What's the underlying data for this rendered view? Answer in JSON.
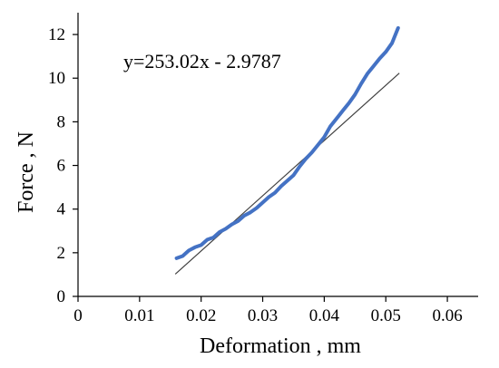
{
  "chart_data": {
    "type": "line",
    "title": "",
    "xlabel": "Deformation , mm",
    "ylabel": "Force , N",
    "xlim": [
      0,
      0.065
    ],
    "ylim": [
      0,
      13
    ],
    "x_ticks": [
      0,
      0.01,
      0.02,
      0.03,
      0.04,
      0.05,
      0.06
    ],
    "x_tick_labels": [
      "0",
      "0.01",
      "0.02",
      "0.03",
      "0.04",
      "0.05",
      "0.06"
    ],
    "y_ticks": [
      0,
      2,
      4,
      6,
      8,
      10,
      12
    ],
    "y_tick_labels": [
      "0",
      "2",
      "4",
      "6",
      "8",
      "10",
      "12"
    ],
    "grid": false,
    "legend": "none",
    "annotation": "y=253.02x - 2.9787",
    "series": [
      {
        "color": "#4472c4",
        "points": [
          [
            0.016,
            1.75
          ],
          [
            0.017,
            1.85
          ],
          [
            0.018,
            2.1
          ],
          [
            0.019,
            2.25
          ],
          [
            0.02,
            2.35
          ],
          [
            0.021,
            2.6
          ],
          [
            0.022,
            2.7
          ],
          [
            0.023,
            2.95
          ],
          [
            0.024,
            3.1
          ],
          [
            0.025,
            3.3
          ],
          [
            0.026,
            3.45
          ],
          [
            0.027,
            3.7
          ],
          [
            0.028,
            3.85
          ],
          [
            0.029,
            4.05
          ],
          [
            0.03,
            4.3
          ],
          [
            0.031,
            4.55
          ],
          [
            0.032,
            4.75
          ],
          [
            0.033,
            5.05
          ],
          [
            0.034,
            5.3
          ],
          [
            0.035,
            5.55
          ],
          [
            0.036,
            5.95
          ],
          [
            0.037,
            6.3
          ],
          [
            0.038,
            6.6
          ],
          [
            0.039,
            6.95
          ],
          [
            0.04,
            7.3
          ],
          [
            0.041,
            7.8
          ],
          [
            0.042,
            8.15
          ],
          [
            0.043,
            8.5
          ],
          [
            0.044,
            8.85
          ],
          [
            0.045,
            9.25
          ],
          [
            0.046,
            9.75
          ],
          [
            0.047,
            10.2
          ],
          [
            0.048,
            10.55
          ],
          [
            0.049,
            10.9
          ],
          [
            0.05,
            11.2
          ],
          [
            0.051,
            11.6
          ],
          [
            0.052,
            12.3
          ]
        ]
      }
    ],
    "trendline": {
      "slope": 253.02,
      "intercept": -2.9787,
      "x_range": [
        0.0158,
        0.0522
      ],
      "color": "#404040"
    }
  }
}
